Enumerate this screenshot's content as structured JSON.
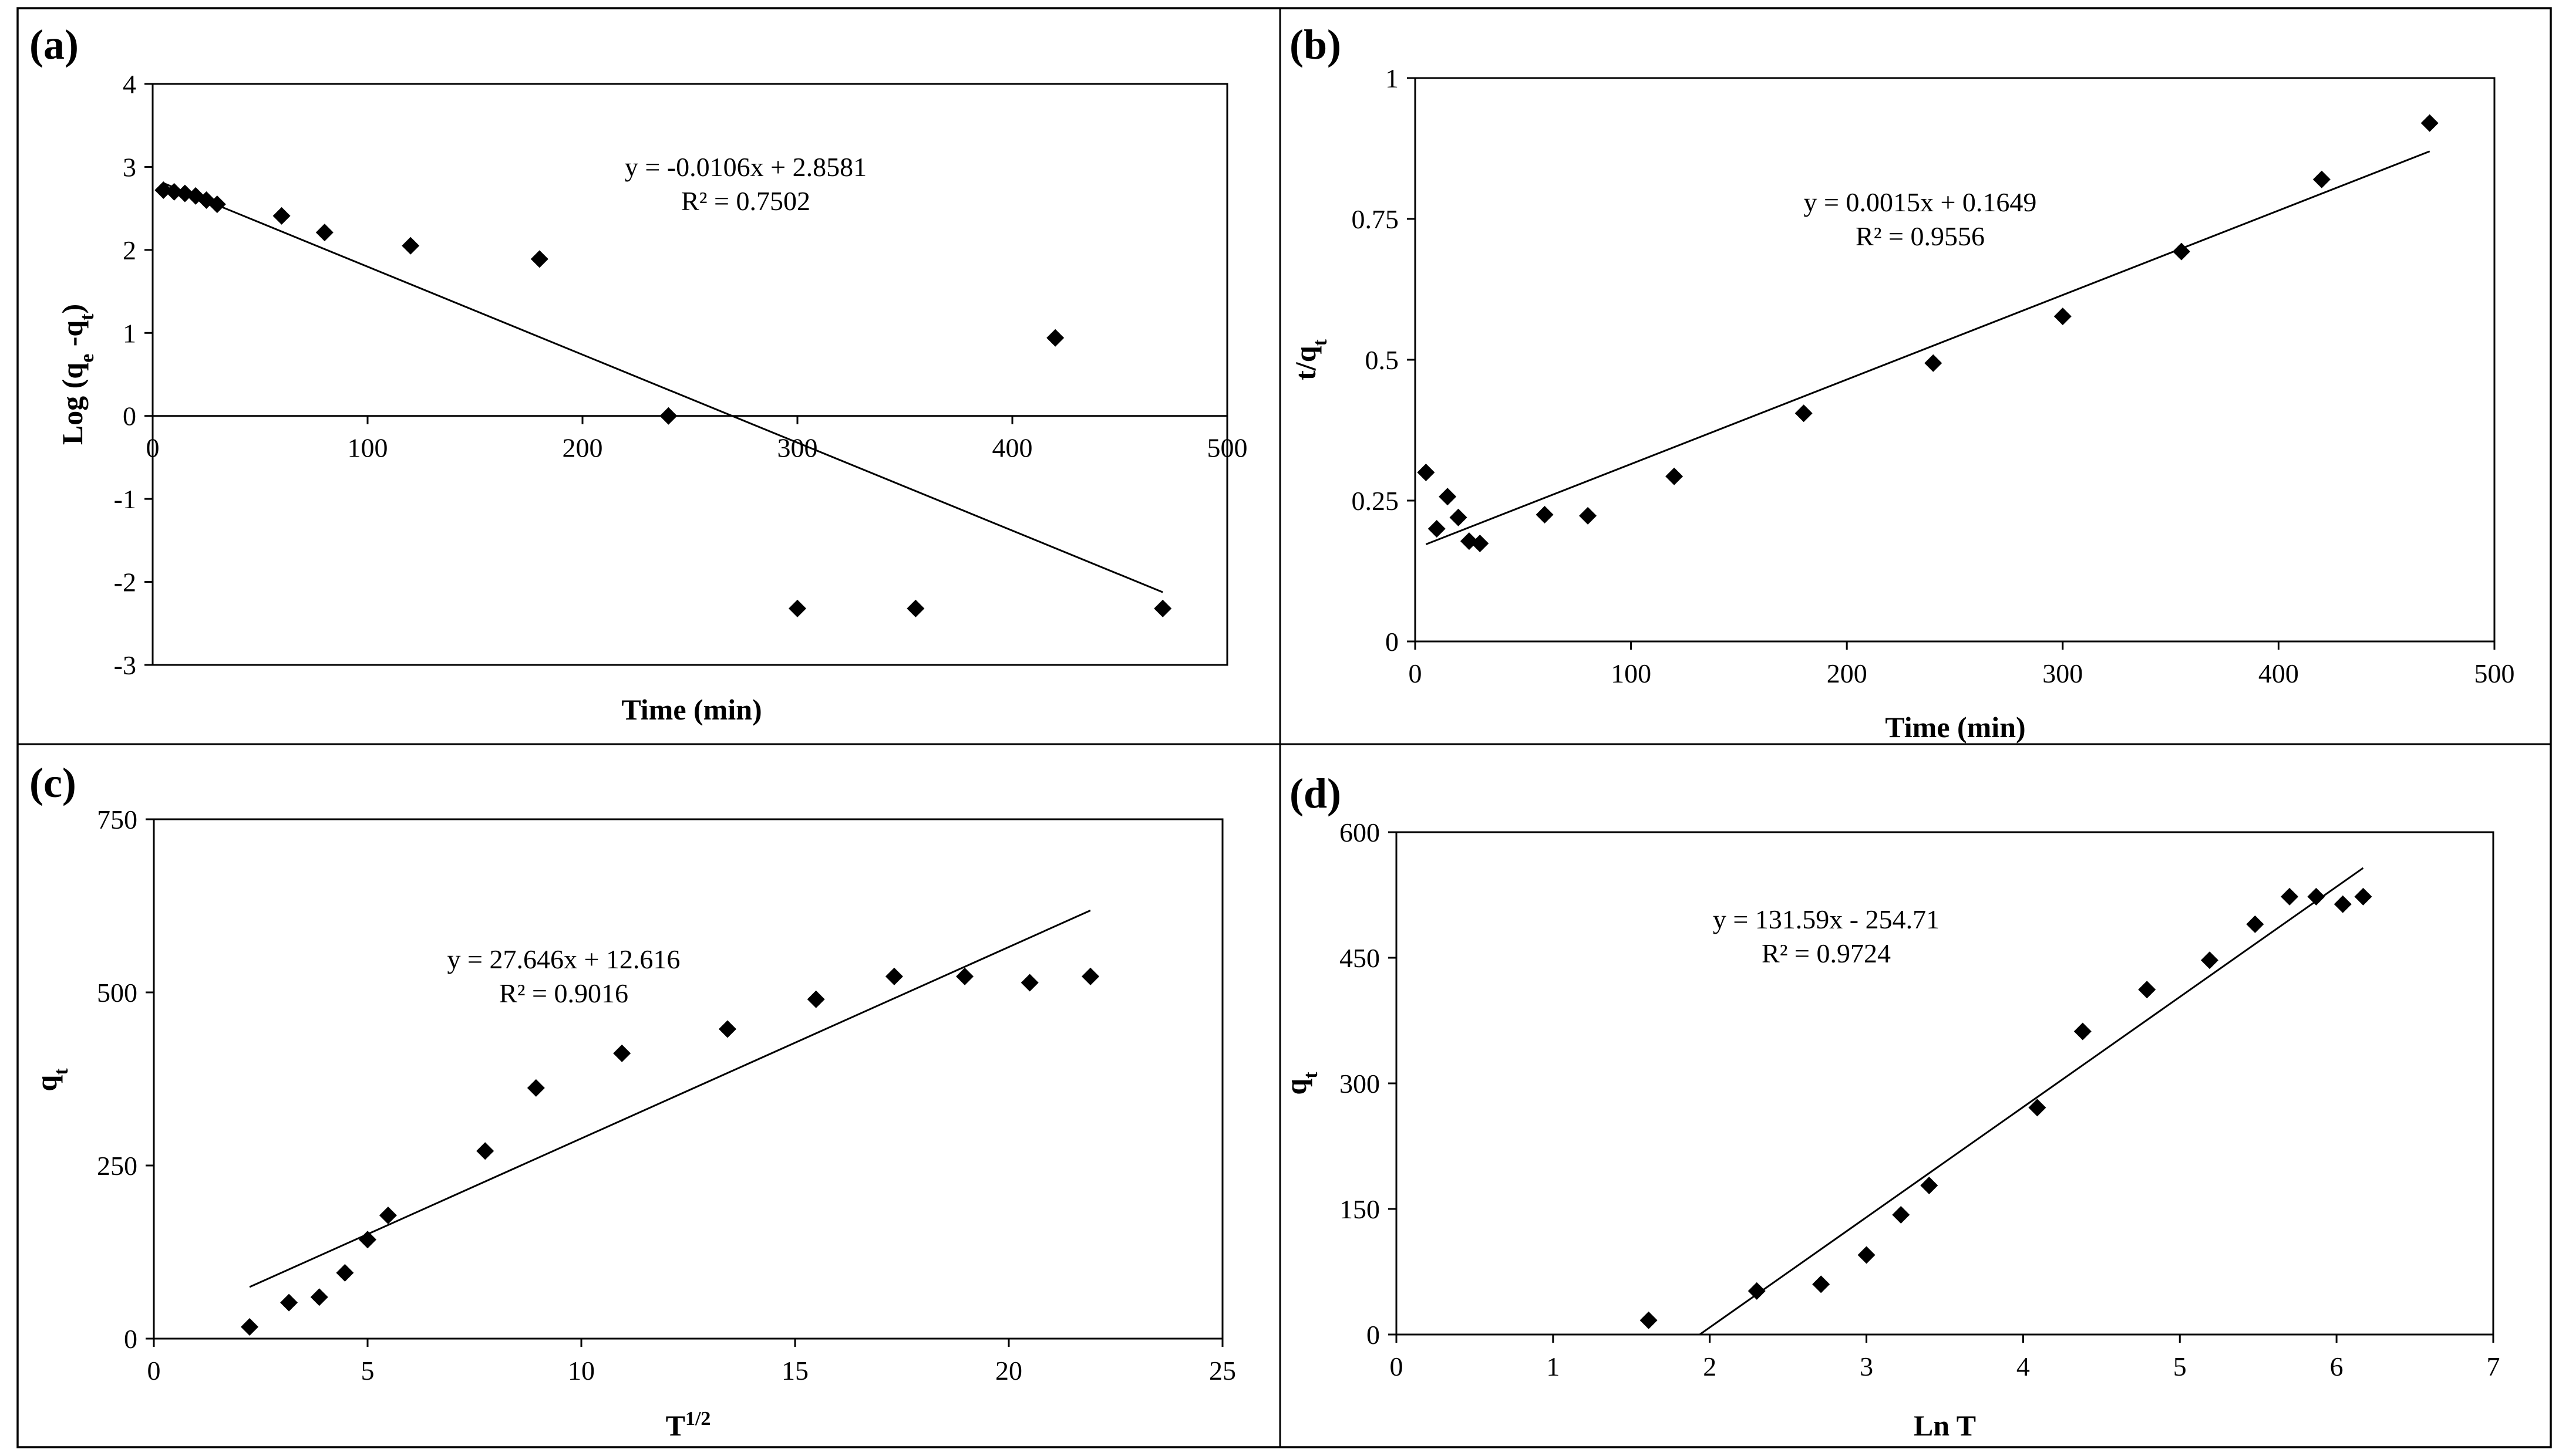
{
  "chart_data": [
    {
      "panel": "(a)",
      "type": "scatter",
      "xlabel": "Time (min)",
      "ylabel": "Log (qe -qt)",
      "ylabel_main": "Log (q",
      "ylabel_sub1": "e",
      "ylabel_mid": " -q",
      "ylabel_sub2": "t",
      "ylabel_end": ")",
      "xlim": [
        0,
        500
      ],
      "ylim": [
        -3,
        4
      ],
      "xticks": [
        0,
        100,
        200,
        300,
        400,
        500
      ],
      "yticks": [
        -3,
        -2,
        -1,
        0,
        1,
        2,
        3,
        4
      ],
      "x": [
        5,
        10,
        15,
        20,
        25,
        30,
        60,
        80,
        120,
        180,
        240,
        300,
        355,
        420,
        470
      ],
      "y": [
        2.72,
        2.7,
        2.68,
        2.65,
        2.6,
        2.55,
        2.41,
        2.21,
        2.05,
        1.89,
        0.0,
        -2.32,
        -2.32,
        0.94,
        -2.32
      ],
      "fit": {
        "slope": -0.0106,
        "intercept": 2.8581,
        "x_from": 5,
        "x_to": 470
      },
      "equation": "y = -0.0106x + 2.8581",
      "r2": "R² = 0.7502"
    },
    {
      "panel": "(b)",
      "type": "scatter",
      "xlabel": "Time (min)",
      "ylabel": "t/qt",
      "ylabel_main": "t/q",
      "ylabel_sub1": "t",
      "xlim": [
        0,
        500
      ],
      "ylim": [
        0,
        1
      ],
      "xticks": [
        0,
        100,
        200,
        300,
        400,
        500
      ],
      "yticks": [
        "0",
        "0.25",
        "0.5",
        "0.75",
        "1"
      ],
      "x": [
        5,
        10,
        15,
        20,
        25,
        30,
        60,
        80,
        120,
        180,
        240,
        300,
        355,
        420,
        470
      ],
      "y": [
        0.3,
        0.2,
        0.257,
        0.22,
        0.178,
        0.174,
        0.225,
        0.223,
        0.293,
        0.405,
        0.494,
        0.577,
        0.692,
        0.82,
        0.92
      ],
      "fit": {
        "slope": 0.0015,
        "intercept": 0.1649,
        "x_from": 5,
        "x_to": 470
      },
      "equation": "y = 0.0015x + 0.1649",
      "r2": "R² = 0.9556"
    },
    {
      "panel": "(c)",
      "type": "scatter",
      "xlabel": "T1/2",
      "xlabel_main": "T",
      "xlabel_sup": "1/2",
      "ylabel": "qt",
      "ylabel_main": "q",
      "ylabel_sub1": "t",
      "xlim": [
        0,
        25
      ],
      "ylim": [
        0,
        750
      ],
      "xticks": [
        0,
        5,
        10,
        15,
        20,
        25
      ],
      "yticks": [
        0,
        250,
        500,
        750
      ],
      "x": [
        2.24,
        3.16,
        3.87,
        4.47,
        5.0,
        5.48,
        7.75,
        8.94,
        10.95,
        13.42,
        15.49,
        17.32,
        18.97,
        20.49,
        21.91
      ],
      "y": [
        17,
        52,
        60,
        95,
        143,
        178,
        271,
        362,
        412,
        447,
        490,
        523,
        523,
        514,
        523
      ],
      "fit": {
        "slope": 27.646,
        "intercept": 12.616,
        "x_from": 2.24,
        "x_to": 21.91
      },
      "equation": "y = 27.646x + 12.616",
      "r2": "R² = 0.9016"
    },
    {
      "panel": "(d)",
      "type": "scatter",
      "xlabel": "Ln T",
      "ylabel": "qt",
      "ylabel_main": "q",
      "ylabel_sub1": "t",
      "xlim": [
        0,
        7
      ],
      "ylim": [
        0,
        600
      ],
      "xticks": [
        0,
        1,
        2,
        3,
        4,
        5,
        6,
        7
      ],
      "yticks": [
        0,
        150,
        300,
        450,
        600
      ],
      "x": [
        1.61,
        2.3,
        2.71,
        3.0,
        3.22,
        3.4,
        4.09,
        4.38,
        4.79,
        5.19,
        5.48,
        5.7,
        5.87,
        6.04,
        6.17
      ],
      "y": [
        17,
        52,
        60,
        95,
        143,
        178,
        271,
        362,
        412,
        447,
        490,
        523,
        523,
        514,
        523
      ],
      "fit": {
        "slope": 131.59,
        "intercept": -254.71,
        "x_from": 1.936,
        "x_to": 6.17
      },
      "equation": "y = 131.59x - 254.71",
      "r2": "R² = 0.9724"
    }
  ]
}
